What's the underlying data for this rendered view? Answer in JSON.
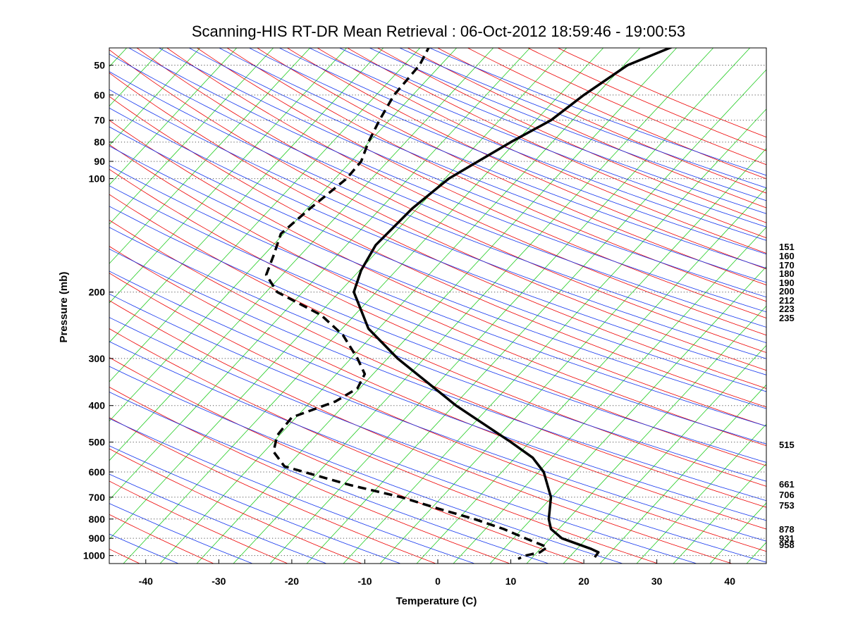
{
  "chart_data": {
    "type": "line",
    "title": "Scanning-HIS RT-DR Mean Retrieval : 06-Oct-2012 18:59:46 - 19:00:53",
    "xlabel": "Temperature (C)",
    "ylabel": "Pressure (mb)",
    "xlim": [
      -45,
      45
    ],
    "ylim": [
      1050,
      45
    ],
    "y_scale": "log",
    "x_ticks": [
      "-40",
      "-30",
      "-20",
      "-10",
      "0",
      "10",
      "20",
      "30",
      "40"
    ],
    "y_ticks": [
      "50",
      "60",
      "70",
      "80",
      "90",
      "100",
      "200",
      "300",
      "400",
      "500",
      "600",
      "700",
      "800",
      "900",
      "1000"
    ],
    "grid": "dotted horizontal at pressure ticks",
    "right_axis_labels": [
      "151",
      "160",
      "170",
      "180",
      "190",
      "200",
      "212",
      "223",
      "235",
      "515",
      "661",
      "706",
      "753",
      "878",
      "931",
      "958"
    ],
    "colors": {
      "temperature": "#000000",
      "dewpoint": "#000000",
      "isotherms": "#22cc22",
      "dry_adiabats": "#ee0000",
      "moist_adiabats": "#1133ee",
      "grid": "#555555"
    },
    "series": [
      {
        "style": "solid",
        "points": [
          {
            "p": 44,
            "t": 33
          },
          {
            "p": 50,
            "t": 26
          },
          {
            "p": 60,
            "t": 20
          },
          {
            "p": 70,
            "t": 15.5
          },
          {
            "p": 80,
            "t": 10
          },
          {
            "p": 90,
            "t": 5.5
          },
          {
            "p": 100,
            "t": 1.5
          },
          {
            "p": 120,
            "t": -3.5
          },
          {
            "p": 150,
            "t": -8.5
          },
          {
            "p": 175,
            "t": -10.5
          },
          {
            "p": 200,
            "t": -11.5
          },
          {
            "p": 250,
            "t": -9.5
          },
          {
            "p": 300,
            "t": -5.5
          },
          {
            "p": 400,
            "t": 2.5
          },
          {
            "p": 500,
            "t": 10
          },
          {
            "p": 550,
            "t": 13
          },
          {
            "p": 600,
            "t": 14.5
          },
          {
            "p": 700,
            "t": 15.5
          },
          {
            "p": 800,
            "t": 15.2
          },
          {
            "p": 850,
            "t": 15.5
          },
          {
            "p": 900,
            "t": 17
          },
          {
            "p": 960,
            "t": 21
          },
          {
            "p": 980,
            "t": 22
          },
          {
            "p": 1010,
            "t": 21.5
          }
        ]
      },
      {
        "style": "dashed",
        "points": [
          {
            "p": 44,
            "t": -1
          },
          {
            "p": 50,
            "t": -2.5
          },
          {
            "p": 60,
            "t": -6
          },
          {
            "p": 70,
            "t": -8
          },
          {
            "p": 80,
            "t": -9.5
          },
          {
            "p": 90,
            "t": -10.5
          },
          {
            "p": 100,
            "t": -12.5
          },
          {
            "p": 120,
            "t": -17.5
          },
          {
            "p": 140,
            "t": -21.5
          },
          {
            "p": 160,
            "t": -22.5
          },
          {
            "p": 180,
            "t": -23.5
          },
          {
            "p": 200,
            "t": -22
          },
          {
            "p": 230,
            "t": -16
          },
          {
            "p": 260,
            "t": -13
          },
          {
            "p": 300,
            "t": -11
          },
          {
            "p": 330,
            "t": -10
          },
          {
            "p": 360,
            "t": -11
          },
          {
            "p": 390,
            "t": -14
          },
          {
            "p": 430,
            "t": -20
          },
          {
            "p": 480,
            "t": -22
          },
          {
            "p": 530,
            "t": -22.5
          },
          {
            "p": 580,
            "t": -21
          },
          {
            "p": 650,
            "t": -12
          },
          {
            "p": 700,
            "t": -5
          },
          {
            "p": 750,
            "t": 0
          },
          {
            "p": 800,
            "t": 5
          },
          {
            "p": 850,
            "t": 9
          },
          {
            "p": 900,
            "t": 12
          },
          {
            "p": 950,
            "t": 15
          },
          {
            "p": 980,
            "t": 14
          },
          {
            "p": 1000,
            "t": 12
          },
          {
            "p": 1020,
            "t": 11
          }
        ]
      }
    ]
  }
}
